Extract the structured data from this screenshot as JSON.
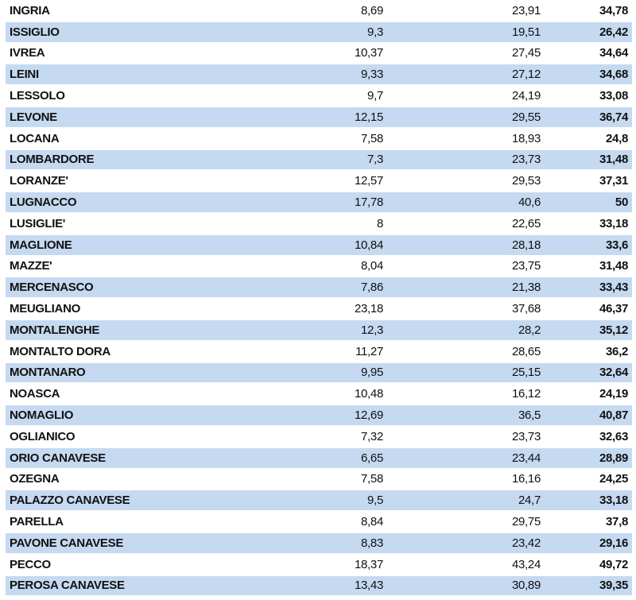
{
  "colors": {
    "band": "#c5d9f1",
    "background": "#ffffff"
  },
  "rows": [
    {
      "name": "INGRIA",
      "v1": "8,69",
      "v2": "23,91",
      "v3": "34,78"
    },
    {
      "name": "ISSIGLIO",
      "v1": "9,3",
      "v2": "19,51",
      "v3": "26,42"
    },
    {
      "name": "IVREA",
      "v1": "10,37",
      "v2": "27,45",
      "v3": "34,64"
    },
    {
      "name": "LEINI",
      "v1": "9,33",
      "v2": "27,12",
      "v3": "34,68"
    },
    {
      "name": "LESSOLO",
      "v1": "9,7",
      "v2": "24,19",
      "v3": "33,08"
    },
    {
      "name": "LEVONE",
      "v1": "12,15",
      "v2": "29,55",
      "v3": "36,74"
    },
    {
      "name": "LOCANA",
      "v1": "7,58",
      "v2": "18,93",
      "v3": "24,8"
    },
    {
      "name": "LOMBARDORE",
      "v1": "7,3",
      "v2": "23,73",
      "v3": "31,48"
    },
    {
      "name": "LORANZE'",
      "v1": "12,57",
      "v2": "29,53",
      "v3": "37,31"
    },
    {
      "name": "LUGNACCO",
      "v1": "17,78",
      "v2": "40,6",
      "v3": "50"
    },
    {
      "name": "LUSIGLIE'",
      "v1": "8",
      "v2": "22,65",
      "v3": "33,18"
    },
    {
      "name": "MAGLIONE",
      "v1": "10,84",
      "v2": "28,18",
      "v3": "33,6"
    },
    {
      "name": "MAZZE'",
      "v1": "8,04",
      "v2": "23,75",
      "v3": "31,48"
    },
    {
      "name": "MERCENASCO",
      "v1": "7,86",
      "v2": "21,38",
      "v3": "33,43"
    },
    {
      "name": "MEUGLIANO",
      "v1": "23,18",
      "v2": "37,68",
      "v3": "46,37"
    },
    {
      "name": "MONTALENGHE",
      "v1": "12,3",
      "v2": "28,2",
      "v3": "35,12"
    },
    {
      "name": "MONTALTO DORA",
      "v1": "11,27",
      "v2": "28,65",
      "v3": "36,2"
    },
    {
      "name": "MONTANARO",
      "v1": "9,95",
      "v2": "25,15",
      "v3": "32,64"
    },
    {
      "name": "NOASCA",
      "v1": "10,48",
      "v2": "16,12",
      "v3": "24,19"
    },
    {
      "name": "NOMAGLIO",
      "v1": "12,69",
      "v2": "36,5",
      "v3": "40,87"
    },
    {
      "name": "OGLIANICO",
      "v1": "7,32",
      "v2": "23,73",
      "v3": "32,63"
    },
    {
      "name": "ORIO CANAVESE",
      "v1": "6,65",
      "v2": "23,44",
      "v3": "28,89"
    },
    {
      "name": "OZEGNA",
      "v1": "7,58",
      "v2": "16,16",
      "v3": "24,25"
    },
    {
      "name": "PALAZZO CANAVESE",
      "v1": "9,5",
      "v2": "24,7",
      "v3": "33,18"
    },
    {
      "name": "PARELLA",
      "v1": "8,84",
      "v2": "29,75",
      "v3": "37,8"
    },
    {
      "name": "PAVONE CANAVESE",
      "v1": "8,83",
      "v2": "23,42",
      "v3": "29,16"
    },
    {
      "name": "PECCO",
      "v1": "18,37",
      "v2": "43,24",
      "v3": "49,72"
    },
    {
      "name": "PEROSA CANAVESE",
      "v1": "13,43",
      "v2": "30,89",
      "v3": "39,35"
    }
  ]
}
